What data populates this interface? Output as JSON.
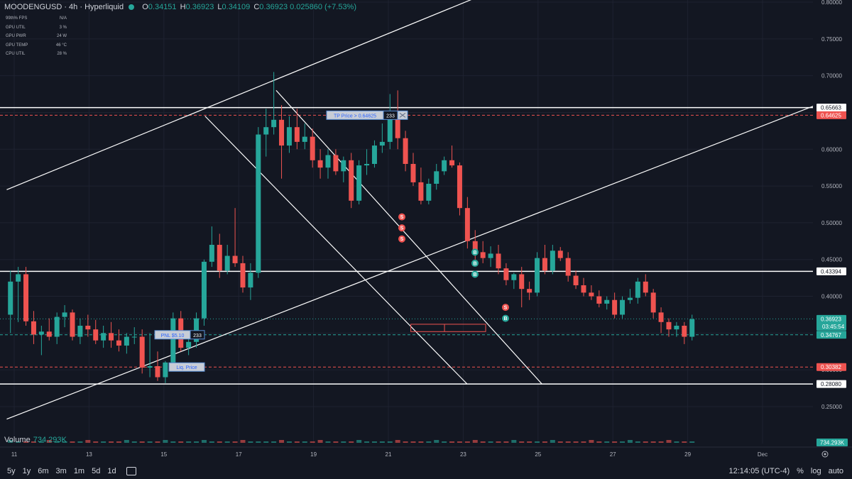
{
  "header": {
    "symbol": "MOODENGUSD · 4h · Hyperliquid",
    "o_label": "O",
    "o_value": "0.34151",
    "h_label": "H",
    "h_value": "0.36923",
    "l_label": "L",
    "l_value": "0.34109",
    "c_label": "C",
    "c_value": "0.36923",
    "change": "0.025860 (+7.53%)"
  },
  "perf_stats": [
    {
      "label": "99th% FPS",
      "value": "N/A"
    },
    {
      "label": "GPU UTIL",
      "value": "3 %"
    },
    {
      "label": "GPU PWR",
      "value": "24 W"
    },
    {
      "label": "GPU TEMP",
      "value": "46 °C"
    },
    {
      "label": "CPU UTIL",
      "value": "28 %"
    }
  ],
  "volume": {
    "label": "Volume",
    "value": "734.293K",
    "badge": "734.293K"
  },
  "bottom_bar": {
    "ranges": [
      "5y",
      "1y",
      "6m",
      "3m",
      "1m",
      "5d",
      "1d"
    ],
    "time": "12:14:05 (UTC-4)",
    "percent_label": "%",
    "log_label": "log",
    "auto_label": "auto"
  },
  "colors": {
    "background": "#131722",
    "up": "#26a69a",
    "down": "#ef5350",
    "line": "#ffffff",
    "grid": "#1e2230"
  },
  "chart_data": {
    "type": "candlestick",
    "x_ticks": [
      "11",
      "13",
      "15",
      "17",
      "19",
      "21",
      "23",
      "25",
      "27",
      "29",
      "Dec"
    ],
    "y_ticks": [
      "0.80000",
      "0.75000",
      "0.70000",
      "0.65000",
      "0.60000",
      "0.55000",
      "0.50000",
      "0.45000",
      "0.40000",
      "0.35000",
      "0.30000",
      "0.25000"
    ],
    "ylim": [
      0.224,
      0.8
    ],
    "xlim": [
      10.8,
      32.8
    ],
    "candles": [
      {
        "x": 10.9,
        "o": 0.375,
        "h": 0.435,
        "l": 0.35,
        "c": 0.42
      },
      {
        "x": 11.0,
        "o": 0.42,
        "h": 0.44,
        "l": 0.365,
        "c": 0.43
      },
      {
        "x": 11.1,
        "o": 0.43,
        "h": 0.44,
        "l": 0.36,
        "c": 0.366
      },
      {
        "x": 11.2,
        "o": 0.366,
        "h": 0.38,
        "l": 0.335,
        "c": 0.348
      },
      {
        "x": 11.3,
        "o": 0.348,
        "h": 0.36,
        "l": 0.32,
        "c": 0.352
      },
      {
        "x": 11.4,
        "o": 0.352,
        "h": 0.37,
        "l": 0.34,
        "c": 0.345
      },
      {
        "x": 11.5,
        "o": 0.345,
        "h": 0.378,
        "l": 0.335,
        "c": 0.372
      },
      {
        "x": 11.6,
        "o": 0.372,
        "h": 0.388,
        "l": 0.358,
        "c": 0.378
      },
      {
        "x": 11.7,
        "o": 0.378,
        "h": 0.382,
        "l": 0.34,
        "c": 0.345
      },
      {
        "x": 11.8,
        "o": 0.345,
        "h": 0.37,
        "l": 0.335,
        "c": 0.36
      },
      {
        "x": 11.9,
        "o": 0.36,
        "h": 0.375,
        "l": 0.345,
        "c": 0.355
      },
      {
        "x": 12.0,
        "o": 0.355,
        "h": 0.368,
        "l": 0.335,
        "c": 0.34
      },
      {
        "x": 12.1,
        "o": 0.34,
        "h": 0.36,
        "l": 0.33,
        "c": 0.35
      },
      {
        "x": 12.2,
        "o": 0.35,
        "h": 0.365,
        "l": 0.33,
        "c": 0.34
      },
      {
        "x": 12.3,
        "o": 0.34,
        "h": 0.355,
        "l": 0.325,
        "c": 0.333
      },
      {
        "x": 12.4,
        "o": 0.333,
        "h": 0.35,
        "l": 0.322,
        "c": 0.345
      },
      {
        "x": 12.5,
        "o": 0.345,
        "h": 0.358,
        "l": 0.335,
        "c": 0.345
      },
      {
        "x": 12.6,
        "o": 0.345,
        "h": 0.355,
        "l": 0.295,
        "c": 0.303
      },
      {
        "x": 12.7,
        "o": 0.303,
        "h": 0.35,
        "l": 0.29,
        "c": 0.305
      },
      {
        "x": 12.8,
        "o": 0.305,
        "h": 0.325,
        "l": 0.285,
        "c": 0.29
      },
      {
        "x": 12.9,
        "o": 0.29,
        "h": 0.312,
        "l": 0.282,
        "c": 0.31
      },
      {
        "x": 13.0,
        "o": 0.31,
        "h": 0.378,
        "l": 0.305,
        "c": 0.37
      },
      {
        "x": 13.1,
        "o": 0.37,
        "h": 0.38,
        "l": 0.325,
        "c": 0.33
      },
      {
        "x": 13.2,
        "o": 0.33,
        "h": 0.35,
        "l": 0.32,
        "c": 0.338
      },
      {
        "x": 13.3,
        "o": 0.338,
        "h": 0.378,
        "l": 0.33,
        "c": 0.37
      },
      {
        "x": 13.4,
        "o": 0.37,
        "h": 0.45,
        "l": 0.36,
        "c": 0.447
      },
      {
        "x": 13.5,
        "o": 0.447,
        "h": 0.495,
        "l": 0.44,
        "c": 0.47
      },
      {
        "x": 13.6,
        "o": 0.47,
        "h": 0.485,
        "l": 0.425,
        "c": 0.435
      },
      {
        "x": 13.7,
        "o": 0.435,
        "h": 0.47,
        "l": 0.43,
        "c": 0.455
      },
      {
        "x": 13.8,
        "o": 0.455,
        "h": 0.52,
        "l": 0.44,
        "c": 0.445
      },
      {
        "x": 13.9,
        "o": 0.445,
        "h": 0.455,
        "l": 0.405,
        "c": 0.412
      },
      {
        "x": 14.0,
        "o": 0.412,
        "h": 0.445,
        "l": 0.395,
        "c": 0.432
      },
      {
        "x": 14.1,
        "o": 0.432,
        "h": 0.63,
        "l": 0.425,
        "c": 0.62
      },
      {
        "x": 14.2,
        "o": 0.62,
        "h": 0.655,
        "l": 0.59,
        "c": 0.63
      },
      {
        "x": 14.3,
        "o": 0.63,
        "h": 0.705,
        "l": 0.62,
        "c": 0.64
      },
      {
        "x": 14.4,
        "o": 0.64,
        "h": 0.66,
        "l": 0.56,
        "c": 0.605
      },
      {
        "x": 14.5,
        "o": 0.605,
        "h": 0.645,
        "l": 0.595,
        "c": 0.63
      },
      {
        "x": 14.6,
        "o": 0.63,
        "h": 0.655,
        "l": 0.6,
        "c": 0.61
      },
      {
        "x": 14.7,
        "o": 0.61,
        "h": 0.635,
        "l": 0.6,
        "c": 0.617
      },
      {
        "x": 14.8,
        "o": 0.617,
        "h": 0.628,
        "l": 0.575,
        "c": 0.585
      },
      {
        "x": 14.9,
        "o": 0.585,
        "h": 0.6,
        "l": 0.56,
        "c": 0.575
      },
      {
        "x": 15.0,
        "o": 0.575,
        "h": 0.6,
        "l": 0.56,
        "c": 0.592
      },
      {
        "x": 15.1,
        "o": 0.592,
        "h": 0.6,
        "l": 0.565,
        "c": 0.57
      },
      {
        "x": 15.2,
        "o": 0.57,
        "h": 0.59,
        "l": 0.555,
        "c": 0.585
      },
      {
        "x": 15.3,
        "o": 0.585,
        "h": 0.595,
        "l": 0.52,
        "c": 0.53
      },
      {
        "x": 15.4,
        "o": 0.53,
        "h": 0.585,
        "l": 0.525,
        "c": 0.578
      },
      {
        "x": 15.5,
        "o": 0.578,
        "h": 0.6,
        "l": 0.565,
        "c": 0.58
      },
      {
        "x": 15.6,
        "o": 0.58,
        "h": 0.612,
        "l": 0.575,
        "c": 0.605
      },
      {
        "x": 15.7,
        "o": 0.605,
        "h": 0.635,
        "l": 0.595,
        "c": 0.61
      },
      {
        "x": 15.8,
        "o": 0.61,
        "h": 0.675,
        "l": 0.6,
        "c": 0.648
      },
      {
        "x": 15.9,
        "o": 0.648,
        "h": 0.68,
        "l": 0.6,
        "c": 0.615
      },
      {
        "x": 16.0,
        "o": 0.615,
        "h": 0.625,
        "l": 0.57,
        "c": 0.58
      },
      {
        "x": 16.1,
        "o": 0.58,
        "h": 0.595,
        "l": 0.55,
        "c": 0.555
      },
      {
        "x": 16.2,
        "o": 0.555,
        "h": 0.575,
        "l": 0.525,
        "c": 0.53
      },
      {
        "x": 16.3,
        "o": 0.53,
        "h": 0.56,
        "l": 0.525,
        "c": 0.553
      },
      {
        "x": 16.4,
        "o": 0.553,
        "h": 0.58,
        "l": 0.545,
        "c": 0.57
      },
      {
        "x": 16.5,
        "o": 0.57,
        "h": 0.59,
        "l": 0.565,
        "c": 0.585
      },
      {
        "x": 16.6,
        "o": 0.585,
        "h": 0.605,
        "l": 0.575,
        "c": 0.578
      },
      {
        "x": 16.7,
        "o": 0.578,
        "h": 0.582,
        "l": 0.51,
        "c": 0.52
      },
      {
        "x": 16.8,
        "o": 0.52,
        "h": 0.535,
        "l": 0.465,
        "c": 0.475
      },
      {
        "x": 16.9,
        "o": 0.475,
        "h": 0.49,
        "l": 0.45,
        "c": 0.46
      },
      {
        "x": 17.0,
        "o": 0.46,
        "h": 0.475,
        "l": 0.445,
        "c": 0.452
      },
      {
        "x": 17.1,
        "o": 0.452,
        "h": 0.468,
        "l": 0.44,
        "c": 0.458
      },
      {
        "x": 17.2,
        "o": 0.458,
        "h": 0.47,
        "l": 0.43,
        "c": 0.438
      },
      {
        "x": 17.3,
        "o": 0.438,
        "h": 0.445,
        "l": 0.415,
        "c": 0.422
      },
      {
        "x": 17.4,
        "o": 0.422,
        "h": 0.432,
        "l": 0.41,
        "c": 0.43
      },
      {
        "x": 17.5,
        "o": 0.43,
        "h": 0.44,
        "l": 0.385,
        "c": 0.41
      },
      {
        "x": 17.6,
        "o": 0.41,
        "h": 0.42,
        "l": 0.395,
        "c": 0.405
      },
      {
        "x": 17.7,
        "o": 0.405,
        "h": 0.46,
        "l": 0.4,
        "c": 0.452
      },
      {
        "x": 17.8,
        "o": 0.452,
        "h": 0.47,
        "l": 0.43,
        "c": 0.435
      },
      {
        "x": 17.9,
        "o": 0.435,
        "h": 0.47,
        "l": 0.43,
        "c": 0.462
      },
      {
        "x": 18.0,
        "o": 0.462,
        "h": 0.467,
        "l": 0.448,
        "c": 0.452
      },
      {
        "x": 18.1,
        "o": 0.452,
        "h": 0.46,
        "l": 0.42,
        "c": 0.428
      },
      {
        "x": 18.2,
        "o": 0.428,
        "h": 0.435,
        "l": 0.41,
        "c": 0.415
      },
      {
        "x": 18.3,
        "o": 0.415,
        "h": 0.425,
        "l": 0.4,
        "c": 0.405
      },
      {
        "x": 18.4,
        "o": 0.405,
        "h": 0.415,
        "l": 0.395,
        "c": 0.4
      },
      {
        "x": 18.5,
        "o": 0.4,
        "h": 0.408,
        "l": 0.385,
        "c": 0.39
      },
      {
        "x": 18.6,
        "o": 0.39,
        "h": 0.4,
        "l": 0.382,
        "c": 0.395
      },
      {
        "x": 18.7,
        "o": 0.395,
        "h": 0.405,
        "l": 0.37,
        "c": 0.375
      },
      {
        "x": 18.8,
        "o": 0.375,
        "h": 0.4,
        "l": 0.37,
        "c": 0.395
      },
      {
        "x": 18.9,
        "o": 0.395,
        "h": 0.41,
        "l": 0.39,
        "c": 0.398
      },
      {
        "x": 19.0,
        "o": 0.398,
        "h": 0.425,
        "l": 0.39,
        "c": 0.42
      },
      {
        "x": 19.1,
        "o": 0.42,
        "h": 0.43,
        "l": 0.4,
        "c": 0.405
      },
      {
        "x": 19.2,
        "o": 0.405,
        "h": 0.41,
        "l": 0.37,
        "c": 0.378
      },
      {
        "x": 19.3,
        "o": 0.378,
        "h": 0.385,
        "l": 0.35,
        "c": 0.365
      },
      {
        "x": 19.4,
        "o": 0.365,
        "h": 0.37,
        "l": 0.345,
        "c": 0.355
      },
      {
        "x": 19.5,
        "o": 0.355,
        "h": 0.365,
        "l": 0.345,
        "c": 0.36
      },
      {
        "x": 19.6,
        "o": 0.36,
        "h": 0.365,
        "l": 0.335,
        "c": 0.345
      },
      {
        "x": 19.7,
        "o": 0.345,
        "h": 0.375,
        "l": 0.34,
        "c": 0.369
      }
    ],
    "levels": [
      {
        "value": 0.65663,
        "label": "0.65663",
        "color": "#ffffff",
        "style": "solid"
      },
      {
        "value": 0.64625,
        "label": "0.64625",
        "color": "#ef5350",
        "style": "dashed"
      },
      {
        "value": 0.43394,
        "label": "0.43394",
        "color": "#ffffff",
        "style": "solid"
      },
      {
        "value": 0.36923,
        "label": "0.36923",
        "color": "#26a69a",
        "style": "dotted",
        "countdown": "03:45:54"
      },
      {
        "value": 0.34767,
        "label": "0.34767",
        "color": "#26a69a",
        "style": "dashed"
      },
      {
        "value": 0.30382,
        "label": "0.30382",
        "color": "#ef5350",
        "style": "dashed"
      },
      {
        "value": 0.2808,
        "label": "0.28080",
        "color": "#ffffff",
        "style": "solid"
      }
    ],
    "order_labels": [
      {
        "text": "TP Price > 0.64625",
        "qty": "233",
        "price": 0.64625,
        "x": 17.1
      },
      {
        "text": "PNL $5.10",
        "qty": "233",
        "price": 0.34767,
        "x": 13.4
      },
      {
        "text": "Liq. Price",
        "price": 0.30382,
        "x": 13.6
      }
    ],
    "signals": [
      {
        "text": "S",
        "x": 18.8,
        "price": 0.508,
        "color": "#ef5350"
      },
      {
        "text": "S",
        "x": 18.8,
        "price": 0.493,
        "color": "#ef5350"
      },
      {
        "text": "S",
        "x": 18.8,
        "price": 0.478,
        "color": "#ef5350"
      },
      {
        "text": "B",
        "x": 19.3,
        "price": 0.46,
        "color": "#26a69a"
      },
      {
        "text": "B",
        "x": 19.3,
        "price": 0.445,
        "color": "#26a69a"
      },
      {
        "text": "B",
        "x": 19.3,
        "price": 0.43,
        "color": "#26a69a"
      },
      {
        "text": "S",
        "x": 19.6,
        "price": 0.385,
        "color": "#ef5350"
      },
      {
        "text": "B",
        "x": 19.6,
        "price": 0.37,
        "color": "#26a69a"
      }
    ]
  }
}
